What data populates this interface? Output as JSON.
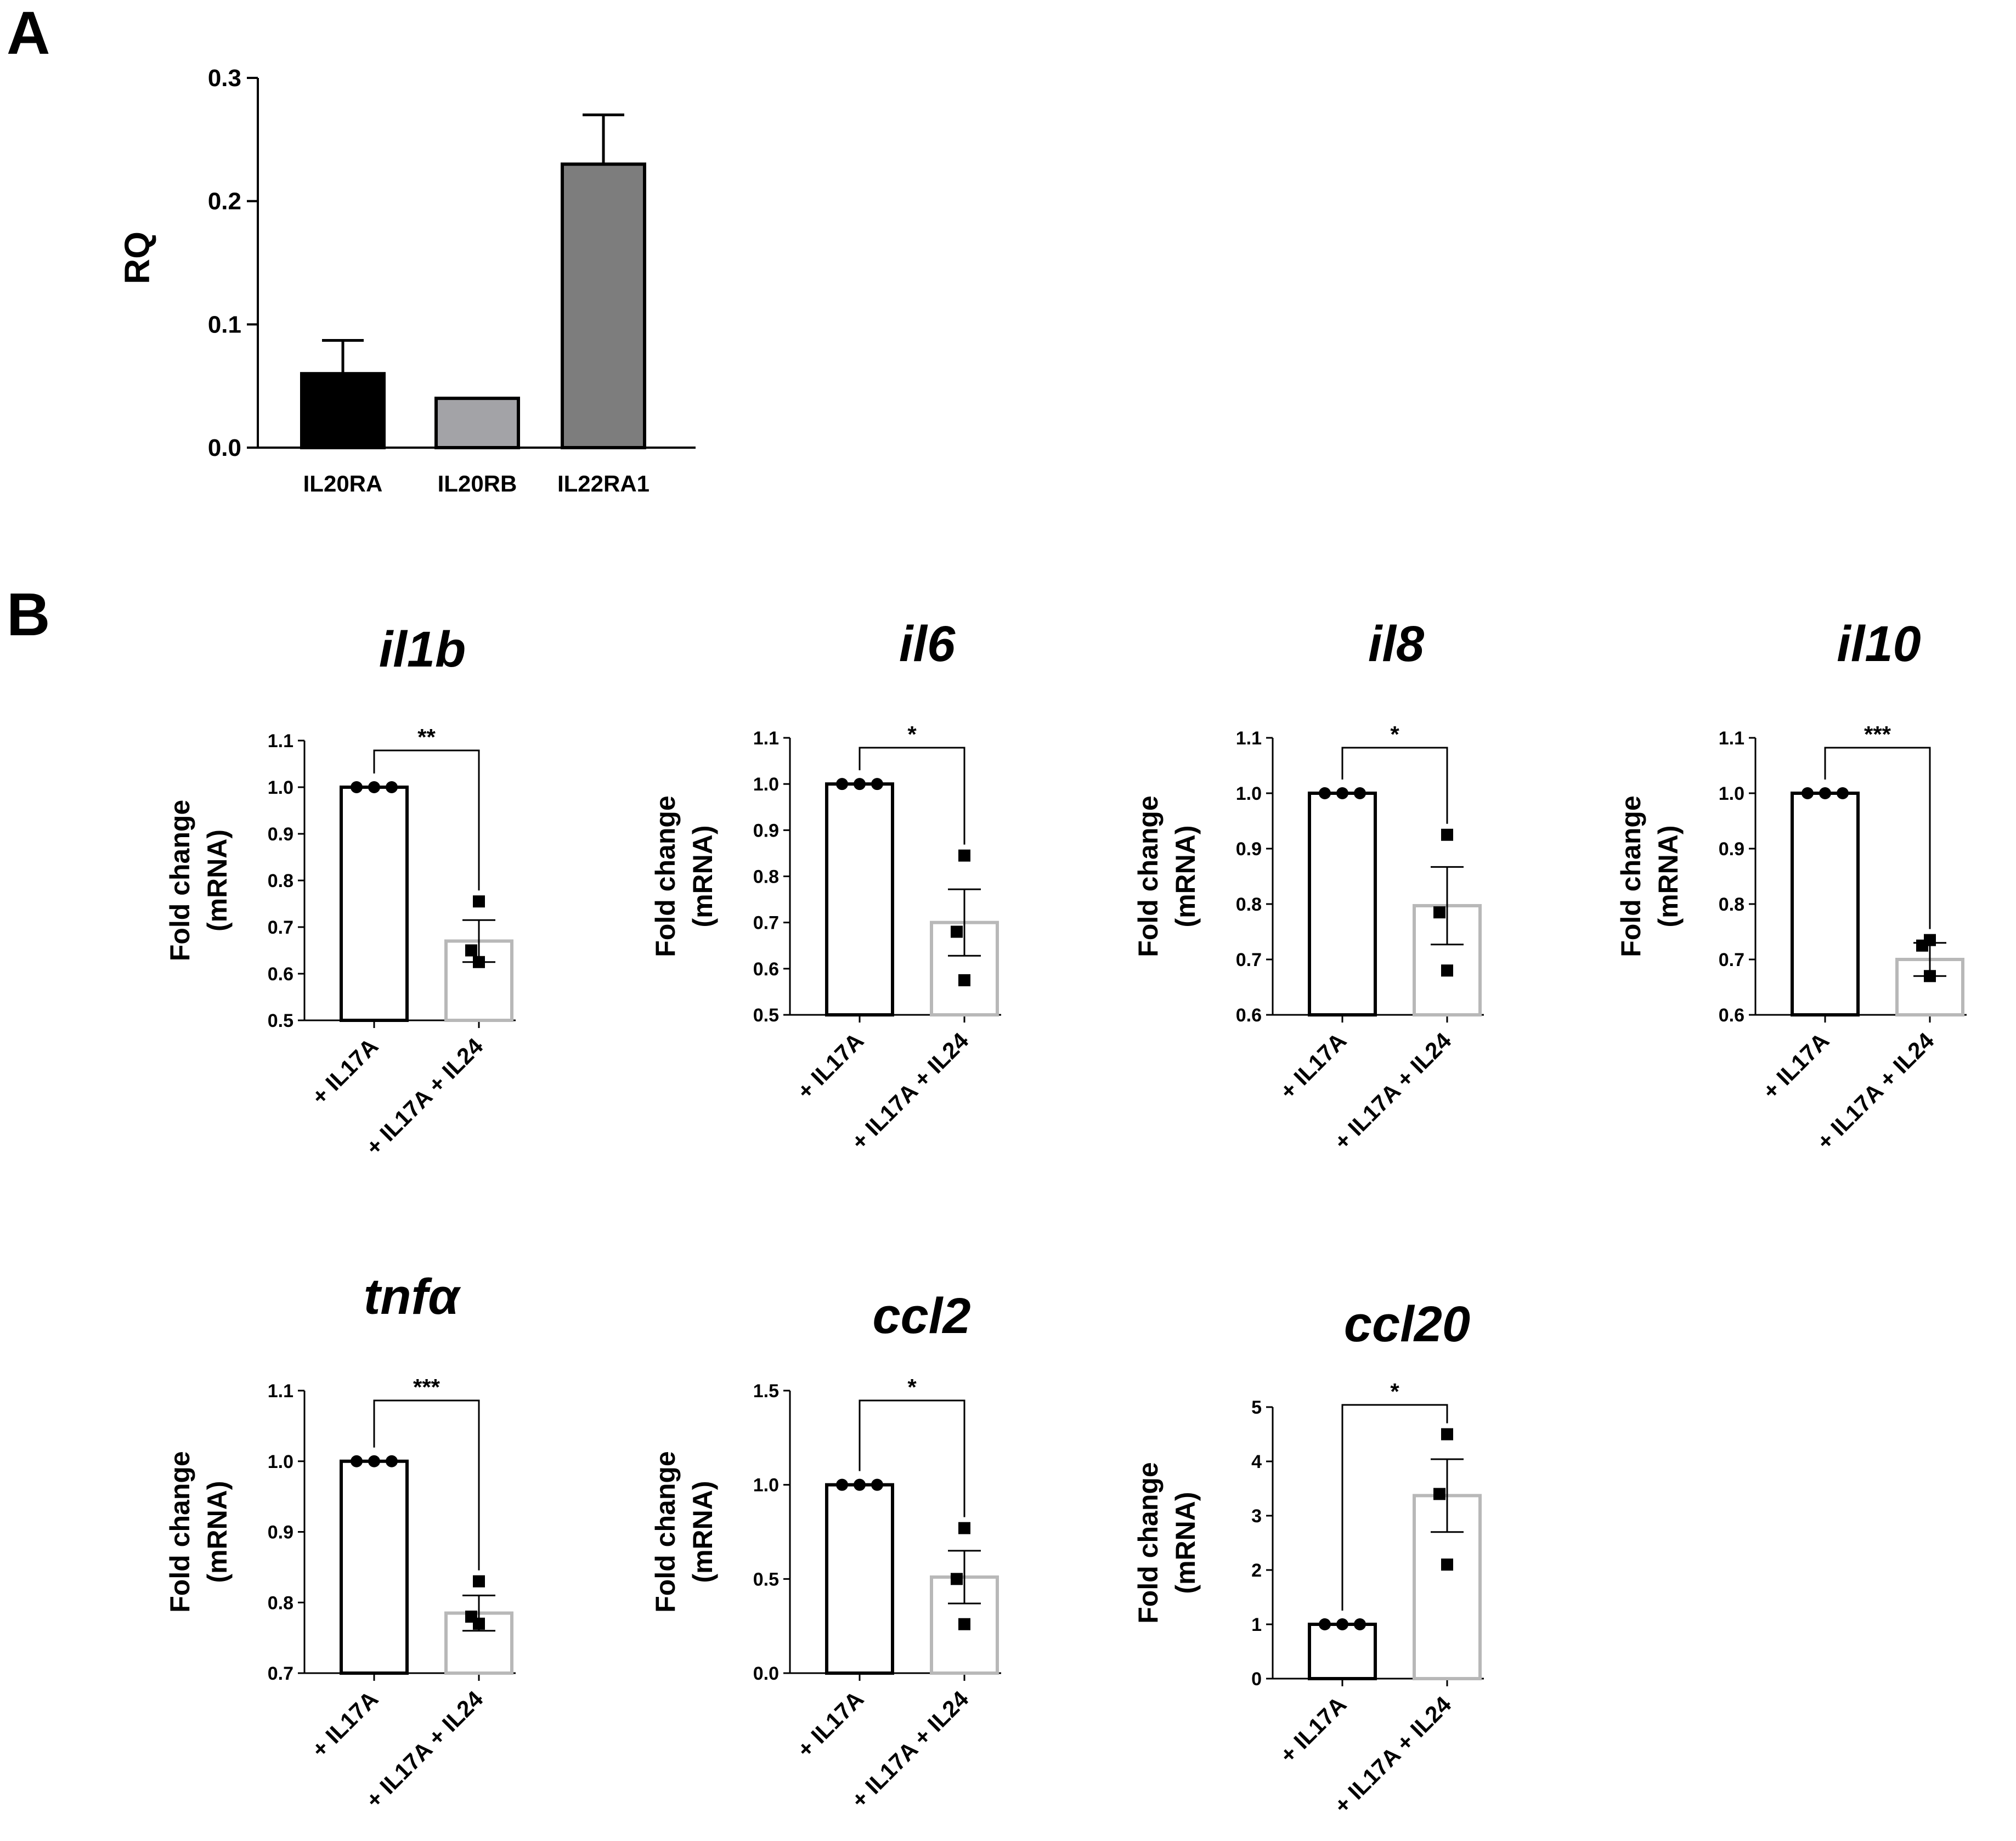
{
  "panels": {
    "a": "A",
    "b": "B"
  },
  "colors": {
    "axis": "#000000",
    "bar_black": "#000000",
    "bar_lightgray": "#a3a3a7",
    "bar_gray": "#7d7d7d",
    "control_bar_fill": "#ffffff",
    "control_bar_edge": "#000000",
    "treated_bar_edge": "#b8b8b8"
  },
  "chart_data": [
    {
      "id": "A",
      "type": "bar",
      "title": "",
      "xlabel": "",
      "ylabel": "RQ",
      "categories": [
        "IL20RA",
        "IL20RB",
        "IL22RA1"
      ],
      "values": [
        0.06,
        0.04,
        0.23
      ],
      "errors": [
        0.027,
        0,
        0.04
      ],
      "bar_colors": [
        "#000000",
        "#a3a3a7",
        "#7d7d7d"
      ],
      "ylim": [
        0,
        0.3
      ],
      "yticks": [
        "0.0",
        "0.1",
        "0.2",
        "0.3"
      ],
      "grid": false
    },
    {
      "id": "il1b",
      "type": "bar",
      "title": "il1b",
      "ylabel": [
        "Fold change",
        "(mRNA)"
      ],
      "categories": [
        "+ IL17A",
        "+ IL17A + IL24"
      ],
      "values": [
        1.0,
        0.67
      ],
      "errors": [
        0,
        0.045
      ],
      "points": [
        [
          1.0,
          1.0,
          1.0
        ],
        [
          0.755,
          0.65,
          0.625
        ]
      ],
      "significance": "**",
      "ylim": [
        0.5,
        1.1
      ],
      "yticks": [
        "0.5",
        "0.6",
        "0.7",
        "0.8",
        "0.9",
        "1.0",
        "1.1"
      ],
      "grid": false
    },
    {
      "id": "il6",
      "type": "bar",
      "title": "il6",
      "ylabel": [
        "Fold change",
        "(mRNA)"
      ],
      "categories": [
        "+ IL17A",
        "+ IL17A + IL24"
      ],
      "values": [
        1.0,
        0.7
      ],
      "errors": [
        0,
        0.072
      ],
      "points": [
        [
          1.0,
          1.0,
          1.0
        ],
        [
          0.845,
          0.68,
          0.575
        ]
      ],
      "significance": "*",
      "ylim": [
        0.5,
        1.1
      ],
      "yticks": [
        "0.5",
        "0.6",
        "0.7",
        "0.8",
        "0.9",
        "1.0",
        "1.1"
      ],
      "grid": false
    },
    {
      "id": "il8",
      "type": "bar",
      "title": "il8",
      "ylabel": [
        "Fold change",
        "(mRNA)"
      ],
      "categories": [
        "+ IL17A",
        "+ IL17A + IL24"
      ],
      "values": [
        1.0,
        0.797
      ],
      "errors": [
        0,
        0.07
      ],
      "points": [
        [
          1.0,
          1.0,
          1.0
        ],
        [
          0.925,
          0.785,
          0.68
        ]
      ],
      "significance": "*",
      "ylim": [
        0.6,
        1.1
      ],
      "yticks": [
        "0.6",
        "0.7",
        "0.8",
        "0.9",
        "1.0",
        "1.1"
      ],
      "grid": false
    },
    {
      "id": "il10",
      "type": "bar",
      "title": "il10",
      "ylabel": [
        "Fold change",
        "(mRNA)"
      ],
      "categories": [
        "+ IL17A",
        "+ IL17A + IL24"
      ],
      "values": [
        1.0,
        0.7
      ],
      "errors": [
        0,
        0.03
      ],
      "points": [
        [
          1.0,
          1.0,
          1.0
        ],
        [
          0.735,
          0.725,
          0.67
        ]
      ],
      "significance": "***",
      "ylim": [
        0.6,
        1.1
      ],
      "yticks": [
        "0.6",
        "0.7",
        "0.8",
        "0.9",
        "1.0",
        "1.1"
      ],
      "grid": false
    },
    {
      "id": "tnfa",
      "type": "bar",
      "title": "tnfα",
      "ylabel": [
        "Fold change",
        "(mRNA)"
      ],
      "categories": [
        "+ IL17A",
        "+ IL17A + IL24"
      ],
      "values": [
        1.0,
        0.785
      ],
      "errors": [
        0,
        0.025
      ],
      "points": [
        [
          1.0,
          1.0,
          1.0
        ],
        [
          0.83,
          0.78,
          0.77
        ]
      ],
      "significance": "***",
      "ylim": [
        0.7,
        1.1
      ],
      "yticks": [
        "0.7",
        "0.8",
        "0.9",
        "1.0",
        "1.1"
      ],
      "grid": false
    },
    {
      "id": "ccl2",
      "type": "bar",
      "title": "ccl2",
      "ylabel": [
        "Fold change",
        "(mRNA)"
      ],
      "categories": [
        "+ IL17A",
        "+ IL17A + IL24"
      ],
      "values": [
        1.0,
        0.51
      ],
      "errors": [
        0,
        0.14
      ],
      "points": [
        [
          1.0,
          1.0,
          1.0
        ],
        [
          0.77,
          0.5,
          0.26
        ]
      ],
      "significance": "*",
      "ylim": [
        0,
        1.5
      ],
      "yticks": [
        "0.0",
        "0.5",
        "1.0",
        "1.5"
      ],
      "grid": false
    },
    {
      "id": "ccl20",
      "type": "bar",
      "title": "ccl20",
      "ylabel": [
        "Fold change",
        "(mRNA)"
      ],
      "categories": [
        "+ IL17A",
        "+ IL17A + IL24"
      ],
      "values": [
        1.0,
        3.37
      ],
      "errors": [
        0,
        0.67
      ],
      "points": [
        [
          1.0,
          1.0,
          1.0
        ],
        [
          4.5,
          3.4,
          2.1
        ]
      ],
      "significance": "*",
      "ylim": [
        0,
        5
      ],
      "yticks": [
        "0",
        "1",
        "2",
        "3",
        "4",
        "5"
      ],
      "grid": false
    }
  ]
}
